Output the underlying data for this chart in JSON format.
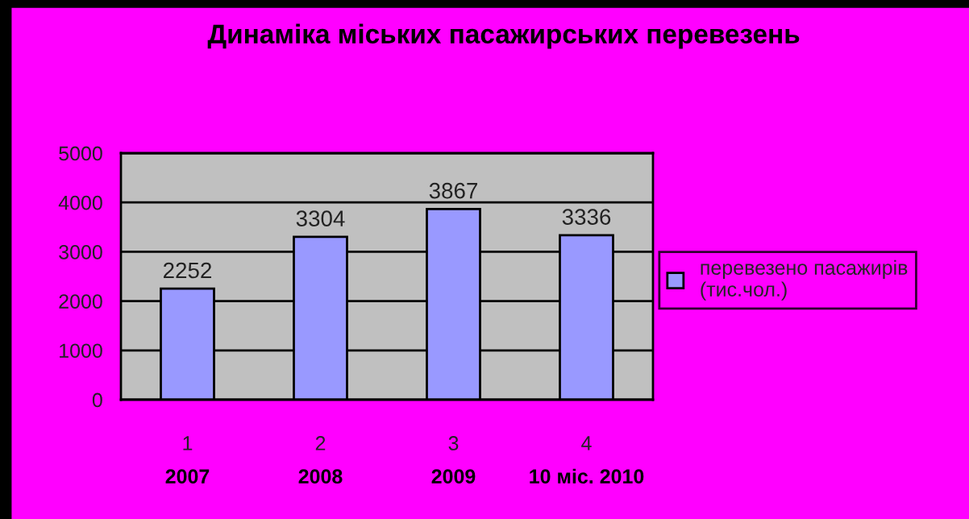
{
  "chart_data": {
    "type": "bar",
    "title": "Динаміка міських пасажирських перевезень",
    "categories": [
      "1",
      "2",
      "3",
      "4"
    ],
    "series": [
      {
        "name": "перевезено пасажирів\n(тис.чол.)",
        "color": "#9999ff",
        "values": [
          2252,
          3304,
          3867,
          3336
        ]
      }
    ],
    "ylim": [
      0,
      5000
    ],
    "yticks": [
      0,
      1000,
      2000,
      3000,
      4000,
      5000
    ],
    "grid": "y",
    "data_labels": true,
    "legend": "right",
    "annotations": [
      "2007",
      "2008",
      "2009",
      "10 міс. 2010"
    ]
  }
}
